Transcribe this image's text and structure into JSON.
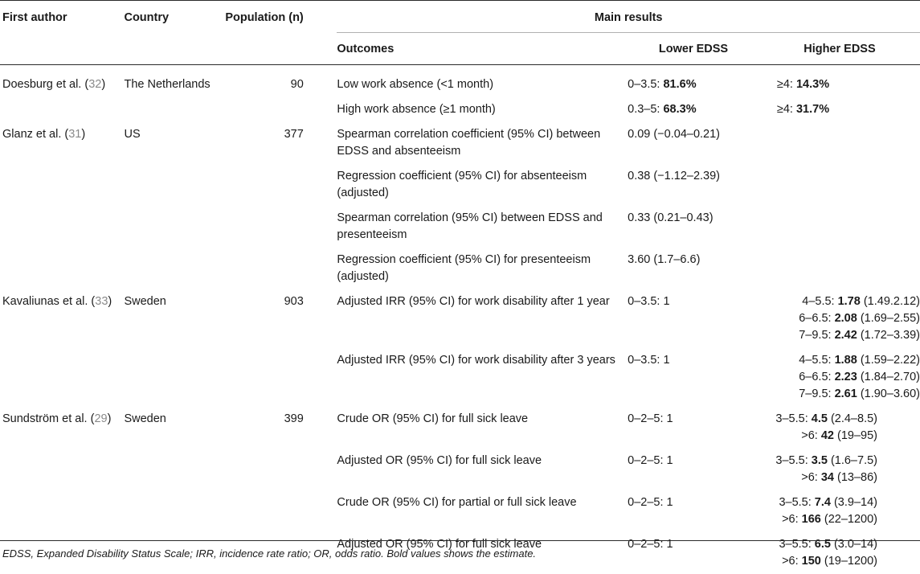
{
  "headers": {
    "first_author": "First author",
    "country": "Country",
    "population": "Population (n)",
    "main_results": "Main results",
    "outcomes": "Outcomes",
    "lower_edss": "Lower EDSS",
    "higher_edss": "Higher EDSS"
  },
  "studies": {
    "doesburg": {
      "author": "Doesburg et al. (",
      "ref": "32",
      "country": "The Netherlands",
      "n": "90",
      "rows": [
        {
          "outcome": "Low work absence (<1 month)",
          "lower_pre": "0–3.5: ",
          "lower_bold": "81.6%",
          "higher_pre": "≥4: ",
          "higher_bold": "14.3%"
        },
        {
          "outcome": "High work absence (≥1 month)",
          "lower_pre": "0.3–5: ",
          "lower_bold": "68.3%",
          "higher_pre": "≥4: ",
          "higher_bold": "31.7%"
        }
      ]
    },
    "glanz": {
      "author": "Glanz et al. (",
      "ref": "31",
      "country": "US",
      "n": "377",
      "rows": [
        {
          "outcome": "Spearman correlation coefficient (95% CI) between EDSS and absenteeism",
          "lower": "0.09 (−0.04–0.21)"
        },
        {
          "outcome": "Regression coefficient (95% CI) for absenteeism (adjusted)",
          "lower": "0.38 (−1.12–2.39)"
        },
        {
          "outcome": "Spearman correlation (95% CI) between EDSS and presenteeism",
          "lower": "0.33 (0.21–0.43)"
        },
        {
          "outcome": "Regression coefficient (95% CI) for presenteeism (adjusted)",
          "lower": "3.60 (1.7–6.6)"
        }
      ]
    },
    "kavaliunas": {
      "author": "Kavaliunas et al. (",
      "ref": "33",
      "country": "Sweden",
      "n": "903",
      "rows": [
        {
          "outcome": "Adjusted IRR (95% CI) for work disability after 1 year",
          "lower": "0–3.5: 1",
          "higher": [
            {
              "pre": "4–5.5: ",
              "bold": "1.78",
              "post": " (1.49.2.12)"
            },
            {
              "pre": "6–6.5: ",
              "bold": "2.08",
              "post": " (1.69–2.55)"
            },
            {
              "pre": "7–9.5: ",
              "bold": "2.42",
              "post": " (1.72–3.39)"
            }
          ]
        },
        {
          "outcome": "Adjusted IRR (95% CI) for work disability after 3 years",
          "lower": "0–3.5: 1",
          "higher": [
            {
              "pre": "4–5.5: ",
              "bold": "1.88",
              "post": " (1.59–2.22)"
            },
            {
              "pre": "6–6.5: ",
              "bold": "2.23",
              "post": " (1.84–2.70)"
            },
            {
              "pre": "7–9.5: ",
              "bold": "2.61",
              "post": " (1.90–3.60)"
            }
          ]
        }
      ]
    },
    "sundstrom": {
      "author": "Sundström et al. (",
      "ref": "29",
      "country": "Sweden",
      "n": "399",
      "rows": [
        {
          "outcome": "Crude OR (95% CI) for full sick leave",
          "lower": "0–2–5: 1",
          "higher": [
            {
              "pre": "3–5.5: ",
              "bold": "4.5",
              "post": " (2.4–8.5)"
            },
            {
              "pre": ">6: ",
              "bold": "42",
              "post": " (19–95)"
            }
          ]
        },
        {
          "outcome": "Adjusted OR (95% CI) for full sick leave",
          "lower": "0–2–5: 1",
          "higher": [
            {
              "pre": "3–5.5: ",
              "bold": "3.5",
              "post": " (1.6–7.5)"
            },
            {
              "pre": ">6: ",
              "bold": "34",
              "post": " (13–86)"
            }
          ]
        },
        {
          "outcome": "Crude OR (95% CI) for partial or full sick leave",
          "lower": "0–2–5: 1",
          "higher": [
            {
              "pre": "3–5.5: ",
              "bold": "7.4",
              "post": " (3.9–14)"
            },
            {
              "pre": ">6: ",
              "bold": "166",
              "post": " (22–1200)"
            }
          ]
        },
        {
          "outcome": "Adjusted OR (95% CI) for full sick leave",
          "lower": "0–2–5: 1",
          "higher": [
            {
              "pre": "3–5.5: ",
              "bold": "6.5",
              "post": " (3.0–14)"
            },
            {
              "pre": ">6: ",
              "bold": "150",
              "post": " (19–1200)"
            }
          ]
        }
      ]
    }
  },
  "closing_paren": ")",
  "footnote": "EDSS, Expanded Disability Status Scale; IRR, incidence rate ratio; OR, odds ratio. Bold values shows the estimate."
}
